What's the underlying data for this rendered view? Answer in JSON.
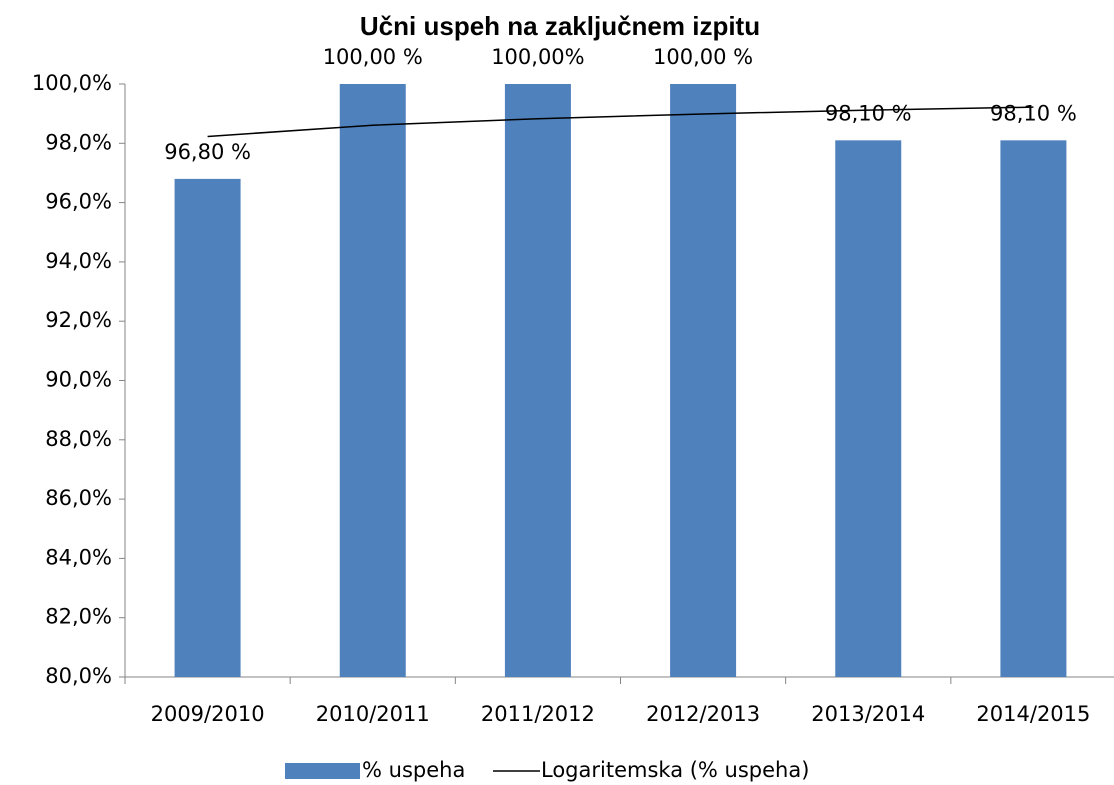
{
  "chart_data": {
    "type": "bar",
    "title": "Učni uspeh na zaključnem izpitu",
    "categories": [
      "2009/2010",
      "2010/2011",
      "2011/2012",
      "2012/2013",
      "2013/2014",
      "2014/2015"
    ],
    "series": [
      {
        "name": "% uspeha",
        "color": "#4f81bd",
        "values": [
          96.8,
          100,
          100,
          100,
          98.1,
          98.1
        ],
        "value_labels": [
          "96,80 %",
          "100,00 %",
          "100,00%",
          "100,00 %",
          "98,10 %",
          "98,10 %"
        ]
      },
      {
        "name": "Logaritemska (% uspeha)",
        "color": "#000000",
        "type": "line",
        "values": [
          98.23,
          98.61,
          98.83,
          98.99,
          99.12,
          99.22
        ]
      }
    ],
    "ylim": [
      80,
      100
    ],
    "yticks": [
      {
        "value": 80,
        "label": "80,0%"
      },
      {
        "value": 82,
        "label": "82,0%"
      },
      {
        "value": 84,
        "label": "84,0%"
      },
      {
        "value": 86,
        "label": "86,0%"
      },
      {
        "value": 88,
        "label": "88,0%"
      },
      {
        "value": 90,
        "label": "90,0%"
      },
      {
        "value": 92,
        "label": "92,0%"
      },
      {
        "value": 94,
        "label": "94,0%"
      },
      {
        "value": 96,
        "label": "96,0%"
      },
      {
        "value": 98,
        "label": "98,0%"
      },
      {
        "value": 100,
        "label": "100,0%"
      }
    ],
    "legend": "bottom"
  }
}
